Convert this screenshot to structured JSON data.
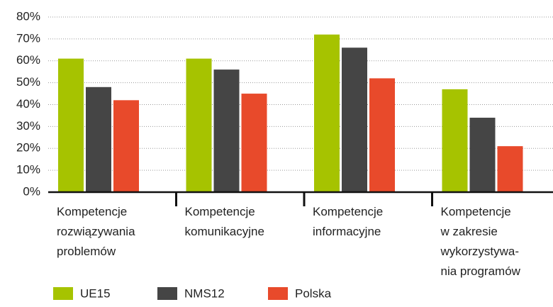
{
  "chart_data": {
    "type": "bar",
    "categories": [
      "Kompetencje\nrozwiązywania\nproblemów",
      "Kompetencje\nkomunikacyjne",
      "Kompetencje\ninformacyjne",
      "Kompetencje\nw zakresie\nwykorzystywa-\nnia programów"
    ],
    "series": [
      {
        "name": "UE15",
        "color": "#a6c300",
        "values": [
          61,
          61,
          72,
          47
        ]
      },
      {
        "name": "NMS12",
        "color": "#454545",
        "values": [
          48,
          56,
          66,
          34
        ]
      },
      {
        "name": "Polska",
        "color": "#e84a2b",
        "values": [
          42,
          45,
          52,
          21
        ]
      }
    ],
    "ylim": [
      0,
      80
    ],
    "yticks": [
      {
        "value": 0,
        "label": "0%"
      },
      {
        "value": 10,
        "label": "10%"
      },
      {
        "value": 20,
        "label": "20%"
      },
      {
        "value": 30,
        "label": "30%"
      },
      {
        "value": 40,
        "label": "40%"
      },
      {
        "value": 50,
        "label": "50%"
      },
      {
        "value": 60,
        "label": "60%"
      },
      {
        "value": 70,
        "label": "70%"
      },
      {
        "value": 80,
        "label": "80%"
      }
    ],
    "grid": true
  }
}
